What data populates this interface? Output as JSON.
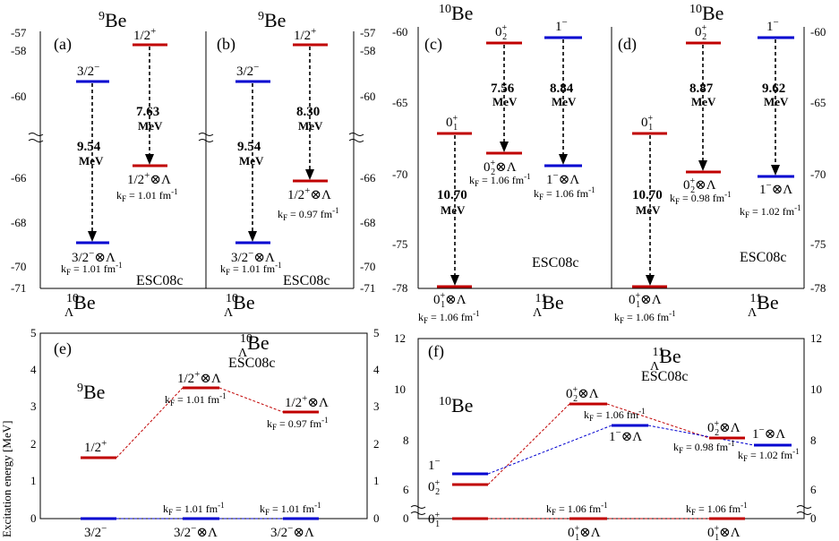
{
  "common": {
    "be9": "Be",
    "be9_mass": "9",
    "be10": "Be",
    "be10_mass": "10",
    "be11": "Be",
    "be11_mass": "11",
    "lambda_sub": "Λ",
    "esc": "ESC08c",
    "mev": "MeV",
    "kf_prefix": "k",
    "kf_sub": "F",
    "colors": {
      "positive_parity": "#c00000",
      "negative_parity": "#0000d0"
    }
  },
  "panel_a": {
    "label": "(a)",
    "ticks": [
      "-57",
      "-58",
      "-60",
      "-66",
      "-68",
      "-70",
      "-71"
    ],
    "core_levels": [
      {
        "label": "3/2",
        "sup": "−"
      },
      {
        "label": "1/2",
        "sup": "+"
      }
    ],
    "hyper_levels": [
      {
        "label": "3/2",
        "sup": "−",
        "suffix": "⊗Λ",
        "kf": " = 1.01 fm",
        "kfsup": "-1"
      },
      {
        "label": "1/2",
        "sup": "+",
        "suffix": "⊗Λ",
        "kf": " = 1.01 fm",
        "kfsup": "-1"
      }
    ],
    "gaps": [
      "9.54",
      "7.63"
    ]
  },
  "panel_b": {
    "label": "(b)",
    "ticks": [
      "-57",
      "-58",
      "-60",
      "-66",
      "-68",
      "-70",
      "-71"
    ],
    "core_levels": [
      {
        "label": "3/2",
        "sup": "−"
      },
      {
        "label": "1/2",
        "sup": "+"
      }
    ],
    "hyper_levels": [
      {
        "label": "3/2",
        "sup": "−",
        "suffix": "⊗Λ",
        "kf": " = 1.01 fm",
        "kfsup": "-1"
      },
      {
        "label": "1/2",
        "sup": "+",
        "suffix": "⊗Λ",
        "kf": " = 0.97 fm",
        "kfsup": "-1"
      }
    ],
    "gaps": [
      "9.54",
      "8.30"
    ]
  },
  "panel_c": {
    "label": "(c)",
    "ticks": [
      "-60",
      "-65",
      "-70",
      "-75",
      "-78"
    ],
    "core_levels": [
      {
        "label": "0",
        "sub": "1",
        "sup": "+"
      },
      {
        "label": "0",
        "sub": "2",
        "sup": "+"
      },
      {
        "label": "1",
        "sup": "−"
      }
    ],
    "hyper_levels": [
      {
        "label": "0",
        "sub": "1",
        "sup": "+",
        "suffix": "⊗Λ",
        "kf": " = 1.06 fm",
        "kfsup": "-1"
      },
      {
        "label": "0",
        "sub": "2",
        "sup": "+",
        "suffix": "⊗Λ",
        "kf": " = 1.06 fm",
        "kfsup": "-1"
      },
      {
        "label": "1",
        "sup": "−",
        "suffix": "⊗Λ",
        "kf": " = 1.06 fm",
        "kfsup": "-1"
      }
    ],
    "gaps": [
      "10.70",
      "7.56",
      "8.84"
    ]
  },
  "panel_d": {
    "label": "(d)",
    "ticks": [
      "-60",
      "-65",
      "-70",
      "-75",
      "-78"
    ],
    "core_levels": [
      {
        "label": "0",
        "sub": "1",
        "sup": "+"
      },
      {
        "label": "0",
        "sub": "2",
        "sup": "+"
      },
      {
        "label": "1",
        "sup": "−"
      }
    ],
    "hyper_levels": [
      {
        "label": "0",
        "sub": "1",
        "sup": "+",
        "suffix": "⊗Λ",
        "kf": " = 1.06 fm",
        "kfsup": "-1"
      },
      {
        "label": "0",
        "sub": "2",
        "sup": "+",
        "suffix": "⊗Λ",
        "kf": " = 0.98 fm",
        "kfsup": "-1"
      },
      {
        "label": "1",
        "sup": "−",
        "suffix": "⊗Λ",
        "kf": " = 1.02 fm",
        "kfsup": "-1"
      }
    ],
    "gaps": [
      "10.70",
      "8.87",
      "9.62"
    ]
  },
  "panel_e": {
    "label": "(e)",
    "ylabel": "Excitation energy [MeV]",
    "ticks": [
      "0",
      "1",
      "2",
      "3",
      "4",
      "5"
    ],
    "levels": [
      {
        "label": "1/2",
        "sup": "+",
        "suffix": ""
      },
      {
        "label": "3/2",
        "sup": "−",
        "suffix": ""
      },
      {
        "label": "1/2",
        "sup": "+",
        "suffix": "⊗Λ",
        "kf": " = 1.01 fm",
        "kfsup": "-1"
      },
      {
        "label": "3/2",
        "sup": "−",
        "suffix": "⊗Λ",
        "kf": " = 1.01 fm",
        "kfsup": "-1"
      },
      {
        "label": "1/2",
        "sup": "+",
        "suffix": "⊗Λ",
        "kf": " = 0.97 fm",
        "kfsup": "-1"
      },
      {
        "label": "3/2",
        "sup": "−",
        "suffix": "⊗Λ",
        "kf": " = 1.01 fm",
        "kfsup": "-1"
      }
    ]
  },
  "panel_f": {
    "label": "(f)",
    "ticks": [
      "0",
      "6",
      "8",
      "10",
      "12"
    ],
    "levels": [
      {
        "label": "1",
        "sup": "−"
      },
      {
        "label": "0",
        "sub": "2",
        "sup": "+"
      },
      {
        "label": "0",
        "sub": "1",
        "sup": "+"
      },
      {
        "label": "0",
        "sub": "2",
        "sup": "+",
        "suffix": "⊗Λ",
        "kf": " = 1.06 fm",
        "kfsup": "-1"
      },
      {
        "label": "1",
        "sup": "−",
        "suffix": "⊗Λ"
      },
      {
        "label": "0",
        "sub": "1",
        "sup": "+",
        "suffix": "⊗Λ",
        "kf": " = 1.06 fm",
        "kfsup": "-1"
      },
      {
        "label": "0",
        "sub": "2",
        "sup": "+",
        "suffix": "⊗Λ",
        "kf": " = 0.98 fm",
        "kfsup": "-1"
      },
      {
        "label": "1",
        "sup": "−",
        "suffix": "⊗Λ",
        "kf": " = 1.02 fm",
        "kfsup": "-1"
      },
      {
        "label": "0",
        "sub": "1",
        "sup": "+",
        "suffix": "⊗Λ",
        "kf": " = 1.06 fm",
        "kfsup": "-1"
      }
    ]
  }
}
